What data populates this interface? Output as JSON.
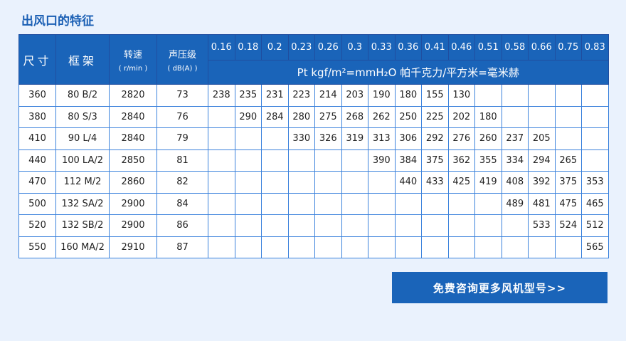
{
  "title": "出风口的特征",
  "headers": {
    "size": "尺寸",
    "frame": "框架",
    "speed": "转速",
    "speed_unit": "( r/min )",
    "spl": "声压级",
    "spl_unit": "( dB(A) )",
    "pressure_unit": "Pt kgf/m²=mmH₂O 帕千克力/平方米=毫米赫"
  },
  "pressures": [
    "0.16",
    "0.18",
    "0.2",
    "0.23",
    "0.26",
    "0.3",
    "0.33",
    "0.36",
    "0.41",
    "0.46",
    "0.51",
    "0.58",
    "0.66",
    "0.75",
    "0.83"
  ],
  "rows": [
    {
      "size": "360",
      "frame": "80 B/2",
      "speed": "2820",
      "spl": "73",
      "vals": [
        "238",
        "235",
        "231",
        "223",
        "214",
        "203",
        "190",
        "180",
        "155",
        "130",
        "",
        "",
        "",
        "",
        ""
      ]
    },
    {
      "size": "380",
      "frame": "80 S/3",
      "speed": "2840",
      "spl": "76",
      "vals": [
        "",
        "290",
        "284",
        "280",
        "275",
        "268",
        "262",
        "250",
        "225",
        "202",
        "180",
        "",
        "",
        "",
        ""
      ]
    },
    {
      "size": "410",
      "frame": "90 L/4",
      "speed": "2840",
      "spl": "79",
      "vals": [
        "",
        "",
        "",
        "330",
        "326",
        "319",
        "313",
        "306",
        "292",
        "276",
        "260",
        "237",
        "205",
        "",
        ""
      ]
    },
    {
      "size": "440",
      "frame": "100 LA/2",
      "speed": "2850",
      "spl": "81",
      "vals": [
        "",
        "",
        "",
        "",
        "",
        "",
        "390",
        "384",
        "375",
        "362",
        "355",
        "334",
        "294",
        "265",
        ""
      ]
    },
    {
      "size": "470",
      "frame": "112 M/2",
      "speed": "2860",
      "spl": "82",
      "vals": [
        "",
        "",
        "",
        "",
        "",
        "",
        "",
        "440",
        "433",
        "425",
        "419",
        "408",
        "392",
        "375",
        "353"
      ]
    },
    {
      "size": "500",
      "frame": "132 SA/2",
      "speed": "2900",
      "spl": "84",
      "vals": [
        "",
        "",
        "",
        "",
        "",
        "",
        "",
        "",
        "",
        "",
        "",
        "489",
        "481",
        "475",
        "465"
      ]
    },
    {
      "size": "520",
      "frame": "132 SB/2",
      "speed": "2900",
      "spl": "86",
      "vals": [
        "",
        "",
        "",
        "",
        "",
        "",
        "",
        "",
        "",
        "",
        "",
        "",
        "533",
        "524",
        "512"
      ]
    },
    {
      "size": "550",
      "frame": "160 MA/2",
      "speed": "2910",
      "spl": "87",
      "vals": [
        "",
        "",
        "",
        "",
        "",
        "",
        "",
        "",
        "",
        "",
        "",
        "",
        "",
        "",
        "565"
      ]
    }
  ],
  "button": "免费咨询更多风机型号>>"
}
